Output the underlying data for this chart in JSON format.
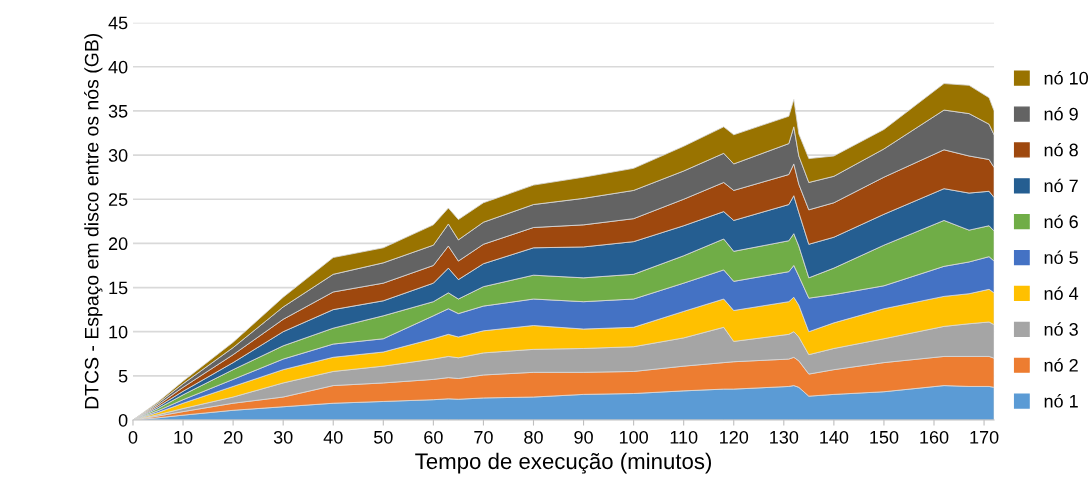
{
  "chart_data": {
    "type": "area",
    "stacked": true,
    "xlabel": "Tempo de execução (minutos)",
    "ylabel": "DTCS - Espaço em disco entre os nós (GB)",
    "x": [
      0,
      5,
      10,
      20,
      30,
      40,
      50,
      60,
      63,
      65,
      70,
      80,
      90,
      100,
      110,
      118,
      120,
      131,
      132,
      133,
      135,
      140,
      150,
      162,
      167,
      171,
      172
    ],
    "xlim": [
      0,
      172
    ],
    "xticks": [
      0,
      10,
      20,
      30,
      40,
      50,
      60,
      70,
      80,
      90,
      100,
      110,
      120,
      130,
      140,
      150,
      160,
      170
    ],
    "ylim": [
      0,
      45
    ],
    "yticks": [
      0,
      5,
      10,
      15,
      20,
      25,
      30,
      35,
      40,
      45
    ],
    "grid": "y",
    "legend": "right",
    "series": [
      {
        "name": "nó 1",
        "color": "#5b9bd5",
        "values": [
          0,
          0.25,
          0.55,
          1.1,
          1.5,
          1.9,
          2.1,
          2.3,
          2.4,
          2.35,
          2.5,
          2.6,
          2.9,
          3.0,
          3.3,
          3.5,
          3.5,
          3.8,
          3.9,
          3.7,
          2.7,
          2.9,
          3.2,
          3.9,
          3.8,
          3.8,
          3.7
        ]
      },
      {
        "name": "nó 2",
        "color": "#ed7d31",
        "values": [
          0,
          0.2,
          0.4,
          0.8,
          1.1,
          2.0,
          2.1,
          2.3,
          2.4,
          2.35,
          2.6,
          2.8,
          2.5,
          2.5,
          2.8,
          3.0,
          3.1,
          3.1,
          3.2,
          3.0,
          2.5,
          2.8,
          3.3,
          3.3,
          3.4,
          3.4,
          3.3
        ]
      },
      {
        "name": "nó 3",
        "color": "#a5a5a5",
        "values": [
          0,
          0.15,
          0.35,
          0.7,
          1.6,
          1.6,
          1.9,
          2.3,
          2.4,
          2.35,
          2.5,
          2.6,
          2.7,
          2.8,
          3.2,
          4.0,
          2.3,
          2.8,
          2.9,
          2.7,
          2.2,
          2.4,
          2.7,
          3.4,
          3.7,
          3.9,
          3.8
        ]
      },
      {
        "name": "nó 4",
        "color": "#ffc000",
        "values": [
          0,
          0.25,
          0.6,
          1.2,
          1.5,
          1.6,
          1.6,
          2.3,
          2.5,
          2.35,
          2.5,
          2.7,
          2.2,
          2.2,
          3.0,
          3.2,
          3.5,
          3.7,
          3.9,
          3.6,
          2.6,
          2.9,
          3.4,
          3.4,
          3.4,
          3.7,
          3.6
        ]
      },
      {
        "name": "nó 5",
        "color": "#4472c4",
        "values": [
          0,
          0.2,
          0.4,
          0.8,
          1.2,
          1.5,
          1.5,
          2.6,
          2.9,
          2.65,
          2.8,
          3.0,
          3.1,
          3.2,
          3.2,
          3.3,
          3.3,
          3.4,
          3.6,
          3.3,
          3.8,
          3.2,
          2.6,
          3.4,
          3.6,
          3.7,
          3.6
        ]
      },
      {
        "name": "nó 6",
        "color": "#70ad47",
        "values": [
          0,
          0.25,
          0.55,
          1.1,
          1.5,
          1.8,
          2.6,
          1.6,
          1.8,
          1.65,
          2.2,
          2.7,
          2.7,
          2.8,
          3.1,
          3.5,
          3.4,
          3.5,
          3.6,
          3.4,
          2.3,
          3.0,
          4.6,
          5.2,
          3.6,
          3.5,
          3.4
        ]
      },
      {
        "name": "nó 7",
        "color": "#255e91",
        "values": [
          0,
          0.2,
          0.4,
          0.8,
          1.6,
          2.1,
          1.7,
          2.1,
          2.8,
          2.2,
          2.6,
          3.1,
          3.5,
          3.7,
          3.4,
          3.1,
          3.5,
          4.1,
          4.3,
          3.8,
          3.8,
          3.5,
          3.5,
          3.6,
          4.2,
          3.9,
          3.8
        ]
      },
      {
        "name": "nó 8",
        "color": "#9e480e",
        "values": [
          0,
          0.2,
          0.45,
          0.9,
          1.4,
          2.0,
          2.0,
          2.0,
          2.5,
          2.1,
          2.2,
          2.3,
          2.5,
          2.6,
          3.0,
          3.3,
          3.4,
          3.4,
          3.6,
          3.2,
          3.9,
          3.9,
          4.2,
          4.4,
          4.2,
          3.6,
          3.4
        ]
      },
      {
        "name": "nó 9",
        "color": "#636363",
        "values": [
          0,
          0.2,
          0.4,
          0.8,
          1.4,
          2.0,
          2.3,
          2.3,
          2.5,
          2.4,
          2.5,
          2.6,
          3.0,
          3.2,
          3.2,
          3.3,
          3.0,
          3.5,
          4.2,
          3.2,
          3.1,
          3.0,
          3.2,
          4.5,
          4.8,
          4.0,
          3.7
        ]
      },
      {
        "name": "nó 10",
        "color": "#997300",
        "values": [
          0,
          0.15,
          0.3,
          0.6,
          1.1,
          1.9,
          1.7,
          2.3,
          1.8,
          2.3,
          2.2,
          2.2,
          2.4,
          2.5,
          2.8,
          3.0,
          3.3,
          3.1,
          3.1,
          2.5,
          2.7,
          2.3,
          2.2,
          3.0,
          3.2,
          3.0,
          2.7
        ]
      }
    ]
  }
}
